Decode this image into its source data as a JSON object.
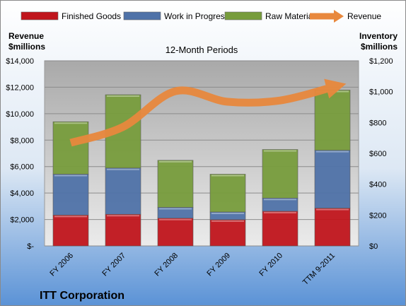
{
  "chart_data": {
    "type": "bar",
    "subtitle": "12-Month Periods",
    "company": "ITT Corporation",
    "categories": [
      "FY 2006",
      "FY 2007",
      "FY 2008",
      "FY 2009",
      "FY 2010",
      "TTM 9-2011"
    ],
    "bar_axis": {
      "label_line1": "Inventory",
      "label_line2": "$millions",
      "ylim": [
        0,
        1200
      ],
      "ticks": [
        0,
        200,
        400,
        600,
        800,
        1000,
        1200
      ],
      "tick_labels": [
        "$0",
        "$200",
        "$400",
        "$600",
        "$800",
        "$1,000",
        "$1,200"
      ]
    },
    "line_axis": {
      "label_line1": "Revenue",
      "label_line2": "$millions",
      "ylim": [
        0,
        14000
      ],
      "ticks": [
        0,
        2000,
        4000,
        6000,
        8000,
        10000,
        12000,
        14000
      ],
      "tick_labels": [
        "$-",
        "$2,000",
        "$4,000",
        "$6,000",
        "$8,000",
        "$10,000",
        "$12,000",
        "$14,000"
      ]
    },
    "series": [
      {
        "name": "Finished Goods",
        "kind": "bar",
        "color": "#c0151c",
        "values": [
          200,
          205,
          180,
          170,
          225,
          245
        ]
      },
      {
        "name": "Work in Progress",
        "kind": "bar",
        "color": "#4f72a8",
        "values": [
          265,
          300,
          70,
          50,
          85,
          375
        ]
      },
      {
        "name": "Raw Materials",
        "kind": "bar",
        "color": "#779c3c",
        "values": [
          340,
          475,
          305,
          245,
          315,
          390
        ]
      },
      {
        "name": "Revenue",
        "kind": "line",
        "color": "#e8883d",
        "values": [
          7800,
          9000,
          11700,
          10900,
          11000,
          12000
        ]
      }
    ],
    "grid": true,
    "legend": "top"
  }
}
